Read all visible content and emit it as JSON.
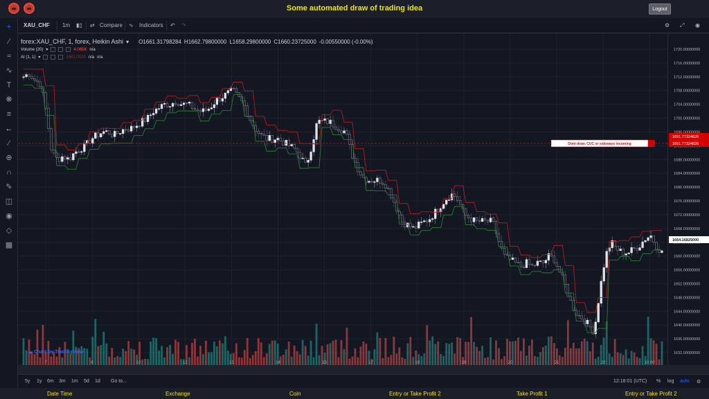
{
  "header": {
    "title": "Some automated draw of trading idea",
    "logout_label": "Logout",
    "logo_icon": "red-bird-icon"
  },
  "toolbar": {
    "symbol": "XAU_CHF",
    "interval": "1m",
    "compare_label": "Compare",
    "indicators_label": "Indicators"
  },
  "legend": {
    "title": "forex:XAU_CHF, 1, forex, Heikin Ashi",
    "open": "O1661.31798284",
    "high": "H1662.79800000",
    "low": "L1658.29800000",
    "close": "C1660.23725000",
    "change": "-0.00550000 (-0.00%)",
    "volume_label": "Volume (20)",
    "volume_value": "4.065K",
    "volume_na": "n/a",
    "ai_label": "AI (1, 1)",
    "ai_value": "1661.0526",
    "ai_na1": "n/a",
    "ai_na2": "n/a"
  },
  "watermark": "Chart by TradingView",
  "annotation": {
    "text": "Dont draw, CUC or sideways incoming",
    "level_label": "1691.77324826",
    "level_label_2": "1691.77324826",
    "current_price_label": "1664.16825000"
  },
  "price_ticks": [
    "1720.00000000",
    "1716.00000000",
    "1712.00000000",
    "1708.00000000",
    "1704.00000000",
    "1700.00000000",
    "1696.00000000",
    "1692.00000000",
    "1688.00000000",
    "1684.00000000",
    "1680.00000000",
    "1676.00000000",
    "1672.00000000",
    "1668.00000000",
    "1664.00000000",
    "1660.00000000",
    "1656.00000000",
    "1652.00000000",
    "1648.00000000",
    "1644.00000000",
    "1640.00000000",
    "1636.00000000",
    "1632.00000000"
  ],
  "time_ticks": [
    "7",
    "8",
    "10",
    "12",
    "13",
    "14",
    "15",
    "17",
    "18",
    "19",
    "20",
    "21",
    "22",
    "10:00"
  ],
  "bottombar": {
    "ranges": [
      "5y",
      "1y",
      "6m",
      "3m",
      "1m",
      "5d",
      "1d"
    ],
    "goto_label": "Go to...",
    "clock": "12:18:01 (UTC)",
    "percent": "%",
    "log": "log",
    "auto": "auto"
  },
  "footer": {
    "cols": [
      "Date Time",
      "Exchange",
      "Coin",
      "Entry or Take Profit 2",
      "Take Profit 1",
      "Entry or Take Profit 2"
    ]
  },
  "colors": {
    "up": "#26a69a",
    "down": "#ef5350",
    "candle_up": "#e0e3eb",
    "resistance": "#b71c1c",
    "support": "#2e7d32",
    "accent_yellow": "#f2e500"
  },
  "chart_data": {
    "type": "candlestick",
    "y_range": [
      1630,
      1722
    ],
    "close_path": [
      1712,
      1713,
      1711,
      1710,
      1702,
      1690,
      1688,
      1689,
      1688,
      1690,
      1691,
      1692,
      1694,
      1695,
      1696,
      1696,
      1695,
      1696,
      1697,
      1697,
      1698,
      1699,
      1700,
      1702,
      1703,
      1704,
      1704,
      1705,
      1704,
      1704,
      1703,
      1702,
      1702,
      1703,
      1705,
      1706,
      1707,
      1708,
      1706,
      1704,
      1700,
      1697,
      1695,
      1694,
      1694,
      1694,
      1693,
      1692,
      1691,
      1689,
      1686,
      1692,
      1699,
      1699,
      1699,
      1698,
      1697,
      1696,
      1690,
      1686,
      1683,
      1682,
      1682,
      1682,
      1681,
      1678,
      1674,
      1670,
      1669,
      1668,
      1669,
      1670,
      1671,
      1673,
      1675,
      1677,
      1678,
      1676,
      1672,
      1671,
      1670,
      1670,
      1670,
      1670,
      1665,
      1660,
      1659,
      1658,
      1657,
      1658,
      1657,
      1658,
      1658,
      1660,
      1659,
      1655,
      1651,
      1646,
      1643,
      1642,
      1640,
      1638,
      1650,
      1660,
      1664,
      1662,
      1661,
      1661,
      1662,
      1663,
      1665,
      1666,
      1663,
      1661
    ]
  }
}
